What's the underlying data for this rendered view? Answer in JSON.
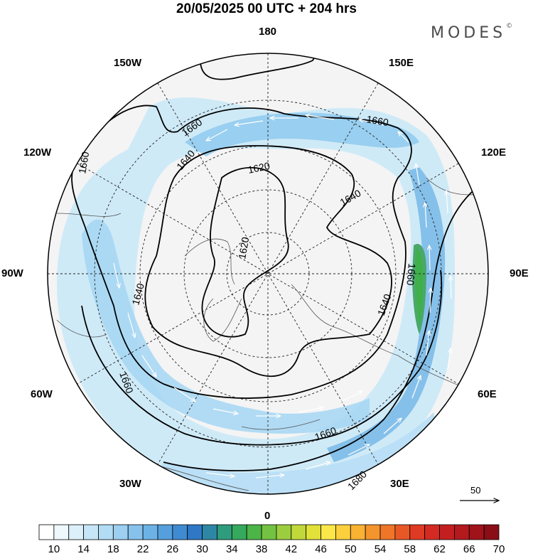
{
  "header": {
    "title": "20/05/2025  00 UTC  + 204 hrs",
    "brand": "MODES",
    "brand_mark": "©"
  },
  "map": {
    "projection": "polar stereographic (north pole)",
    "longitude_labels": [
      "180",
      "150E",
      "120E",
      "90E",
      "60E",
      "30E",
      "0",
      "30W",
      "60W",
      "90W",
      "120W",
      "150W"
    ],
    "contour_labels": [
      "1620",
      "1620",
      "1640",
      "1640",
      "1640",
      "1640",
      "1660",
      "1660",
      "1660",
      "1660",
      "1660",
      "1660",
      "1680"
    ],
    "reference_vector": {
      "label": "50"
    }
  },
  "colorbar": {
    "labels": [
      "10",
      "14",
      "18",
      "22",
      "26",
      "30",
      "34",
      "38",
      "42",
      "46",
      "50",
      "54",
      "58",
      "62",
      "66",
      "70"
    ],
    "colors": [
      "#ffffff",
      "#eef8fd",
      "#dcf0fa",
      "#c6e6f7",
      "#b1dcf3",
      "#9ccff0",
      "#87c2ec",
      "#6db2e6",
      "#559fdd",
      "#3f8bd2",
      "#2e78c6",
      "#2d87a4",
      "#2f9c7d",
      "#35a95e",
      "#4cb548",
      "#74c242",
      "#9ccd3f",
      "#c1d83b",
      "#e2e13a",
      "#fce74a",
      "#fbd03c",
      "#f9b232",
      "#f4942c",
      "#ef7628",
      "#e85826",
      "#df3b24",
      "#d42a22",
      "#c41f20",
      "#b3191d",
      "#a0131a",
      "#8a0e16"
    ]
  }
}
